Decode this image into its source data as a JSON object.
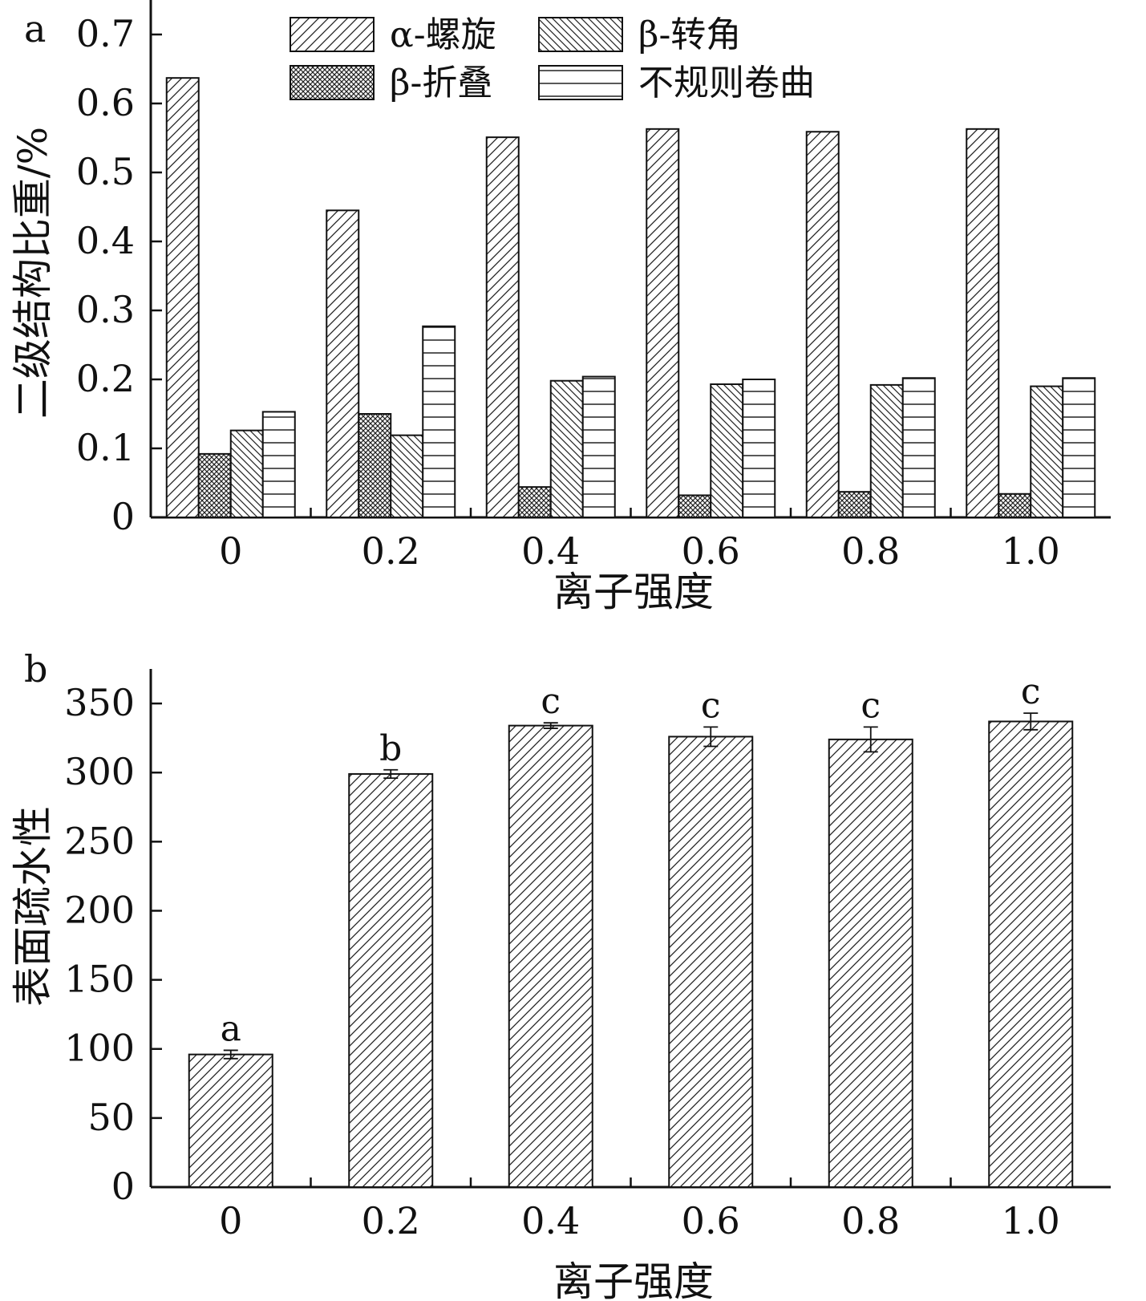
{
  "chart_data": [
    {
      "panel": "a",
      "type": "bar",
      "xlabel": "离子强度",
      "ylabel": "二级结构比重/%",
      "categories": [
        "0",
        "0.2",
        "0.4",
        "0.6",
        "0.8",
        "1.0"
      ],
      "yticks": [
        "0",
        "0.1",
        "0.2",
        "0.3",
        "0.4",
        "0.5",
        "0.6",
        "0.7"
      ],
      "ylim": [
        0,
        0.75
      ],
      "legend_position": "top-center",
      "series": [
        {
          "name": "α-螺旋",
          "pattern": "diag-up",
          "values": [
            0.637,
            0.445,
            0.551,
            0.563,
            0.559,
            0.563
          ]
        },
        {
          "name": "β-折叠",
          "pattern": "crosshatch",
          "values": [
            0.092,
            0.15,
            0.044,
            0.032,
            0.037,
            0.034
          ]
        },
        {
          "name": "β-转角",
          "pattern": "diag-down",
          "values": [
            0.126,
            0.119,
            0.198,
            0.193,
            0.192,
            0.19
          ]
        },
        {
          "name": "不规则卷曲",
          "pattern": "horizontal-lines",
          "values": [
            0.153,
            0.277,
            0.204,
            0.2,
            0.202,
            0.202
          ]
        }
      ],
      "legend_order": [
        0,
        2,
        1,
        3
      ]
    },
    {
      "panel": "b",
      "type": "bar",
      "xlabel": "离子强度",
      "ylabel": "表面疏水性",
      "categories": [
        "0",
        "0.2",
        "0.4",
        "0.6",
        "0.8",
        "1.0"
      ],
      "yticks": [
        "0",
        "50",
        "100",
        "150",
        "200",
        "250",
        "300",
        "350"
      ],
      "ylim": [
        0,
        375
      ],
      "series": [
        {
          "name": "",
          "pattern": "diag-up",
          "values": [
            96,
            299,
            334,
            326,
            324,
            337
          ],
          "errors": [
            3,
            3,
            2,
            7,
            9,
            6
          ]
        }
      ],
      "significance_letters": [
        "a",
        "b",
        "c",
        "c",
        "c",
        "c"
      ]
    }
  ]
}
